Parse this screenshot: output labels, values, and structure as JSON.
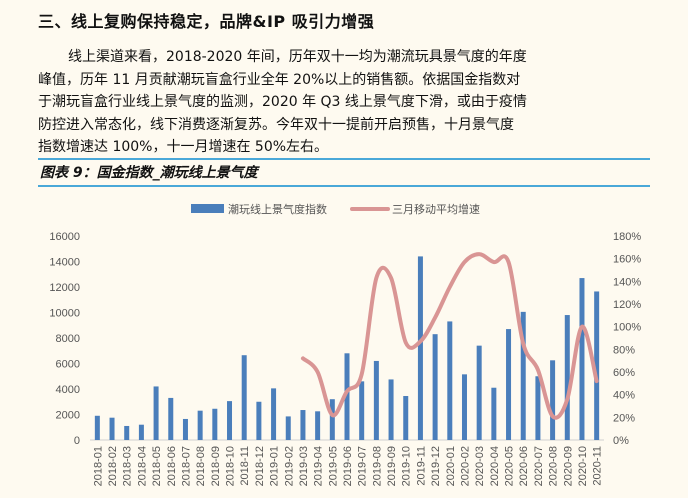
{
  "heading": "三、线上复购保持稳定，品牌&IP 吸引力增强",
  "paragraph_lines": [
    "线上渠道来看，2018-2020 年间，历年双十一均为潮流玩具景气度的年度",
    "峰值，历年 11 月贡献潮玩盲盒行业全年 20%以上的销售额。依据国金指数对",
    "于潮玩盲盒行业线上景气度的监测，2020 年 Q3 线上景气度下滑，或由于疫情",
    "防控进入常态化，线下消费逐渐复苏。今年双十一提前开启预售，十月景气度",
    "指数增速达 100%，十一月增速在 50%左右。"
  ],
  "figure_caption": "图表 9：国金指数_潮玩线上景气度",
  "colors": {
    "bar": "#4a7ebb",
    "line": "#d99594",
    "rule": "#4aa8d8",
    "background": "#fefaf0"
  },
  "chart_data": {
    "type": "bar+line",
    "legend_position": "top",
    "categories": [
      "2018-01",
      "2018-02",
      "2018-03",
      "2018-04",
      "2018-05",
      "2018-06",
      "2018-07",
      "2018-08",
      "2018-09",
      "2018-10",
      "2018-11",
      "2018-12",
      "2019-01",
      "2019-02",
      "2019-03",
      "2019-04",
      "2019-05",
      "2019-06",
      "2019-07",
      "2019-08",
      "2019-09",
      "2019-10",
      "2019-11",
      "2019-12",
      "2020-01",
      "2020-02",
      "2020-03",
      "2020-04",
      "2020-05",
      "2020-06",
      "2020-07",
      "2020-08",
      "2020-09",
      "2020-10",
      "2020-11"
    ],
    "left_axis": {
      "min": 0,
      "max": 16000,
      "ticks": [
        "0",
        "2000",
        "4000",
        "6000",
        "8000",
        "10000",
        "12000",
        "14000",
        "16000"
      ]
    },
    "right_axis": {
      "min": 0,
      "max": 180,
      "ticks": [
        "0%",
        "20%",
        "40%",
        "60%",
        "80%",
        "100%",
        "120%",
        "140%",
        "160%",
        "180%"
      ]
    },
    "series": [
      {
        "name": "潮玩线上景气度指数",
        "type": "bar",
        "axis": "left",
        "values": [
          1900,
          1750,
          1100,
          1200,
          4200,
          3300,
          1650,
          2300,
          2450,
          3050,
          6650,
          3000,
          4050,
          1850,
          2350,
          2250,
          3200,
          6800,
          4600,
          6200,
          4750,
          3450,
          14400,
          8300,
          9300,
          5150,
          7400,
          4100,
          8700,
          10050,
          5000,
          6250,
          9800,
          12700,
          11650
        ]
      },
      {
        "name": "三月移动平均增速",
        "type": "line",
        "axis": "right",
        "unit": "%",
        "values": [
          null,
          null,
          null,
          null,
          null,
          null,
          null,
          null,
          null,
          null,
          null,
          null,
          null,
          null,
          72,
          60,
          22,
          43,
          58,
          143,
          143,
          86,
          87,
          108,
          135,
          157,
          164,
          157,
          157,
          85,
          62,
          21,
          36,
          100,
          52
        ]
      }
    ]
  }
}
